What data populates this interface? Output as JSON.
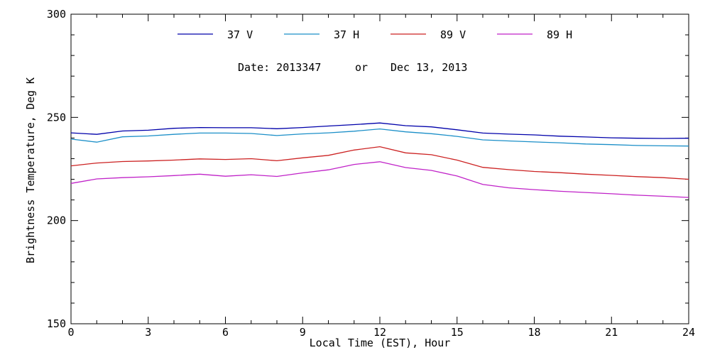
{
  "chart_data": {
    "type": "line",
    "title": "",
    "xlabel": "Local Time (EST), Hour",
    "ylabel": "Brightness Temperature, Deg K",
    "xlim": [
      0,
      24
    ],
    "ylim": [
      150,
      300
    ],
    "x_ticks": [
      0,
      3,
      6,
      9,
      12,
      15,
      18,
      21,
      24
    ],
    "y_ticks": [
      150,
      200,
      250,
      300
    ],
    "x_tick_labels": [
      "0",
      "3",
      "6",
      "9",
      "12",
      "15",
      "18",
      "21",
      "24"
    ],
    "y_tick_labels": [
      "150",
      "200",
      "250",
      "300"
    ],
    "grid": false,
    "legend_position": "top-center",
    "annotations": {
      "date_prefix": "Date: 2013347",
      "date_or": "or",
      "date_text": "Dec 13, 2013"
    },
    "x": [
      0,
      1,
      2,
      3,
      4,
      5,
      6,
      7,
      8,
      9,
      10,
      11,
      12,
      13,
      14,
      15,
      16,
      17,
      18,
      19,
      20,
      21,
      22,
      23,
      24
    ],
    "series": [
      {
        "name": "37 V",
        "color": "#0000aa",
        "values": [
          242.5,
          241.8,
          243.4,
          243.8,
          244.7,
          245.1,
          245.0,
          245.0,
          244.5,
          245.1,
          245.8,
          246.5,
          247.3,
          246.0,
          245.4,
          244.0,
          242.4,
          241.9,
          241.5,
          240.9,
          240.5,
          240.1,
          239.9,
          239.8,
          239.9
        ]
      },
      {
        "name": "37 H",
        "color": "#1b8fc8",
        "values": [
          239.5,
          238.0,
          240.6,
          241.0,
          241.8,
          242.4,
          242.4,
          242.2,
          241.2,
          242.0,
          242.5,
          243.3,
          244.4,
          243.0,
          242.1,
          240.8,
          239.1,
          238.6,
          238.1,
          237.7,
          237.1,
          236.8,
          236.4,
          236.2,
          236.1
        ]
      },
      {
        "name": "89 V",
        "color": "#cc2222",
        "values": [
          226.5,
          227.9,
          228.6,
          228.9,
          229.3,
          229.9,
          229.6,
          230.0,
          229.0,
          230.4,
          231.6,
          234.2,
          235.8,
          232.8,
          231.9,
          229.3,
          225.8,
          224.7,
          223.8,
          223.2,
          222.5,
          221.9,
          221.3,
          220.8,
          220.0
        ]
      },
      {
        "name": "89 H",
        "color": "#c022c8",
        "values": [
          218.0,
          220.2,
          220.8,
          221.2,
          221.8,
          222.5,
          221.5,
          222.2,
          221.4,
          223.1,
          224.6,
          227.2,
          228.5,
          225.7,
          224.3,
          221.6,
          217.5,
          215.9,
          215.0,
          214.2,
          213.6,
          213.0,
          212.3,
          211.8,
          211.2
        ]
      }
    ]
  }
}
